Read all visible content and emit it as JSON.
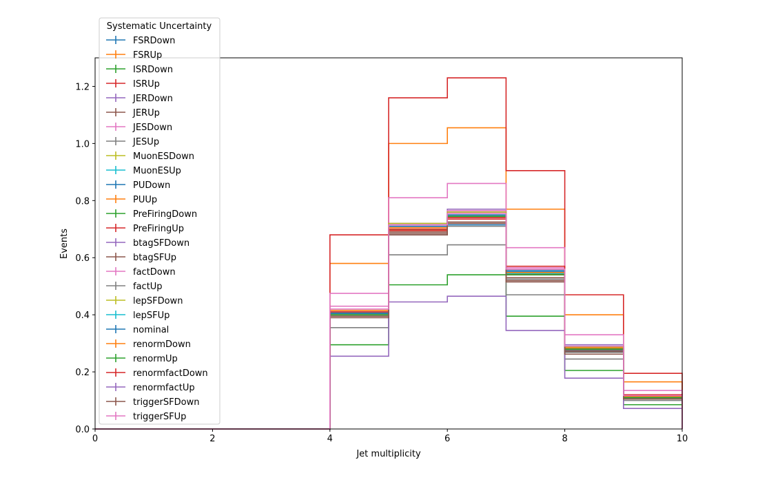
{
  "chart_data": {
    "type": "line",
    "style": "step-histogram",
    "xlabel": "Jet multiplicity",
    "ylabel": "Events",
    "xlim": [
      0,
      10
    ],
    "ylim": [
      0,
      1.3
    ],
    "x_ticks": [
      0,
      2,
      4,
      6,
      8,
      10
    ],
    "y_ticks": [
      0.0,
      0.2,
      0.4,
      0.6,
      0.8,
      1.0,
      1.2
    ],
    "x_tick_labels": [
      "0",
      "2",
      "4",
      "6",
      "8",
      "10"
    ],
    "y_tick_labels": [
      "0.0",
      "0.2",
      "0.4",
      "0.6",
      "0.8",
      "1.0",
      "1.2"
    ],
    "grid": false,
    "bin_edges": [
      0,
      1,
      2,
      3,
      4,
      5,
      6,
      7,
      8,
      9,
      10
    ],
    "legend": {
      "title": "Systematic Uncertainty",
      "placement": "top-left, above axes"
    },
    "series": [
      {
        "name": "FSRDown",
        "color": "#1f77b4",
        "values": [
          0,
          0,
          0,
          0,
          0.395,
          0.705,
          0.715,
          0.54,
          0.275,
          0.11
        ]
      },
      {
        "name": "FSRUp",
        "color": "#ff7f0e",
        "values": [
          0,
          0,
          0,
          0,
          0.58,
          1.0,
          1.055,
          0.77,
          0.4,
          0.165
        ]
      },
      {
        "name": "ISRDown",
        "color": "#2ca02c",
        "values": [
          0,
          0,
          0,
          0,
          0.295,
          0.505,
          0.54,
          0.395,
          0.205,
          0.085
        ]
      },
      {
        "name": "ISRUp",
        "color": "#d62728",
        "values": [
          0,
          0,
          0,
          0,
          0.68,
          1.16,
          1.23,
          0.905,
          0.47,
          0.195
        ]
      },
      {
        "name": "JERDown",
        "color": "#9467bd",
        "values": [
          0,
          0,
          0,
          0,
          0.4,
          0.715,
          0.77,
          0.56,
          0.295,
          0.115
        ]
      },
      {
        "name": "JERUp",
        "color": "#8c564b",
        "values": [
          0,
          0,
          0,
          0,
          0.395,
          0.69,
          0.735,
          0.52,
          0.27,
          0.11
        ]
      },
      {
        "name": "JESDown",
        "color": "#e377c2",
        "values": [
          0,
          0,
          0,
          0,
          0.43,
          0.71,
          0.765,
          0.565,
          0.29,
          0.12
        ]
      },
      {
        "name": "JESUp",
        "color": "#7f7f7f",
        "values": [
          0,
          0,
          0,
          0,
          0.355,
          0.61,
          0.645,
          0.47,
          0.245,
          0.1
        ]
      },
      {
        "name": "MuonESDown",
        "color": "#bcbd22",
        "values": [
          0,
          0,
          0,
          0,
          0.405,
          0.7,
          0.74,
          0.545,
          0.28,
          0.112
        ]
      },
      {
        "name": "MuonESUp",
        "color": "#17becf",
        "values": [
          0,
          0,
          0,
          0,
          0.405,
          0.705,
          0.745,
          0.55,
          0.282,
          0.113
        ]
      },
      {
        "name": "PUDown",
        "color": "#1f77b4",
        "values": [
          0,
          0,
          0,
          0,
          0.41,
          0.71,
          0.75,
          0.555,
          0.285,
          0.114
        ]
      },
      {
        "name": "PUUp",
        "color": "#ff7f0e",
        "values": [
          0,
          0,
          0,
          0,
          0.4,
          0.695,
          0.735,
          0.54,
          0.278,
          0.111
        ]
      },
      {
        "name": "PreFiringDown",
        "color": "#2ca02c",
        "values": [
          0,
          0,
          0,
          0,
          0.405,
          0.7,
          0.74,
          0.545,
          0.281,
          0.112
        ]
      },
      {
        "name": "PreFiringUp",
        "color": "#d62728",
        "values": [
          0,
          0,
          0,
          0,
          0.4,
          0.695,
          0.735,
          0.54,
          0.279,
          0.111
        ]
      },
      {
        "name": "btagSFDown",
        "color": "#9467bd",
        "values": [
          0,
          0,
          0,
          0,
          0.41,
          0.72,
          0.76,
          0.56,
          0.288,
          0.116
        ]
      },
      {
        "name": "btagSFUp",
        "color": "#8c564b",
        "values": [
          0,
          0,
          0,
          0,
          0.395,
          0.685,
          0.725,
          0.53,
          0.272,
          0.109
        ]
      },
      {
        "name": "factDown",
        "color": "#e377c2",
        "values": [
          0,
          0,
          0,
          0,
          0.475,
          0.81,
          0.86,
          0.635,
          0.33,
          0.135
        ]
      },
      {
        "name": "factUp",
        "color": "#7f7f7f",
        "values": [
          0,
          0,
          0,
          0,
          0.39,
          0.68,
          0.71,
          0.525,
          0.268,
          0.108
        ]
      },
      {
        "name": "lepSFDown",
        "color": "#bcbd22",
        "values": [
          0,
          0,
          0,
          0,
          0.42,
          0.72,
          0.76,
          0.56,
          0.288,
          0.116
        ]
      },
      {
        "name": "lepSFUp",
        "color": "#17becf",
        "values": [
          0,
          0,
          0,
          0,
          0.4,
          0.7,
          0.74,
          0.545,
          0.28,
          0.112
        ]
      },
      {
        "name": "nominal",
        "color": "#1f77b4",
        "values": [
          0,
          0,
          0,
          0,
          0.405,
          0.705,
          0.745,
          0.55,
          0.283,
          0.113
        ]
      },
      {
        "name": "renormDown",
        "color": "#ff7f0e",
        "values": [
          0,
          0,
          0,
          0,
          0.415,
          0.705,
          0.74,
          0.548,
          0.284,
          0.114
        ]
      },
      {
        "name": "renormUp",
        "color": "#2ca02c",
        "values": [
          0,
          0,
          0,
          0,
          0.4,
          0.7,
          0.745,
          0.54,
          0.28,
          0.11
        ]
      },
      {
        "name": "renormfactDown",
        "color": "#d62728",
        "values": [
          0,
          0,
          0,
          0,
          0.41,
          0.7,
          0.74,
          0.57,
          0.29,
          0.12
        ]
      },
      {
        "name": "renormfactUp",
        "color": "#9467bd",
        "values": [
          0,
          0,
          0,
          0,
          0.255,
          0.445,
          0.465,
          0.345,
          0.178,
          0.072
        ]
      },
      {
        "name": "triggerSFDown",
        "color": "#8c564b",
        "values": [
          0,
          0,
          0,
          0,
          0.39,
          0.68,
          0.72,
          0.515,
          0.262,
          0.105
        ]
      },
      {
        "name": "triggerSFUp",
        "color": "#e377c2",
        "values": [
          0,
          0,
          0,
          0,
          0.42,
          0.715,
          0.755,
          0.56,
          0.29,
          0.117
        ]
      }
    ]
  }
}
